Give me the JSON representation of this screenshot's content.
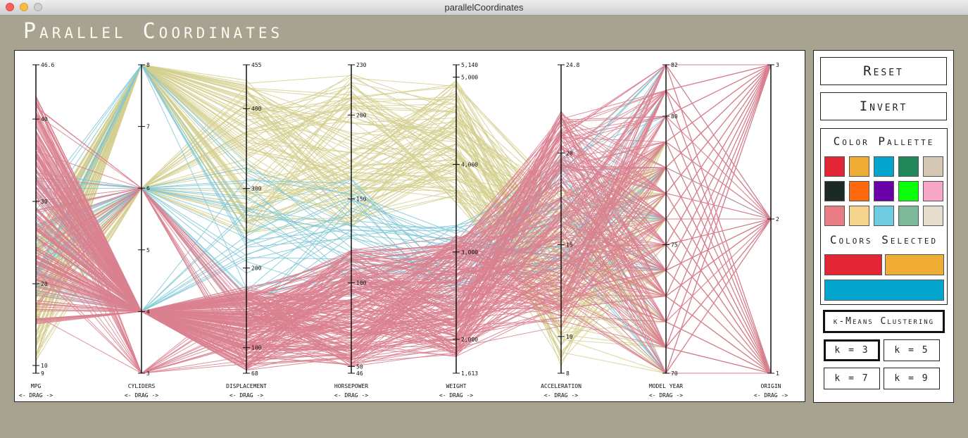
{
  "window": {
    "title": "parallelCoordinates"
  },
  "app": {
    "title": "Parallel Coordinates"
  },
  "axes": [
    {
      "name": "MPG",
      "drag": "<- DRAG ->",
      "ticks": [
        {
          "label": "46.6",
          "frac": 0
        },
        {
          "label": "40",
          "frac": 0.176
        },
        {
          "label": "30",
          "frac": 0.443
        },
        {
          "label": "20",
          "frac": 0.71
        },
        {
          "label": "10",
          "frac": 0.975
        },
        {
          "label": "9",
          "frac": 1
        }
      ]
    },
    {
      "name": "CYLIDERS",
      "drag": "<- DRAG ->",
      "ticks": [
        {
          "label": "8",
          "frac": 0
        },
        {
          "label": "7",
          "frac": 0.2
        },
        {
          "label": "6",
          "frac": 0.4
        },
        {
          "label": "5",
          "frac": 0.6
        },
        {
          "label": "4",
          "frac": 0.8
        },
        {
          "label": "3",
          "frac": 1
        }
      ]
    },
    {
      "name": "DISPLACEMENT",
      "drag": "<- DRAG ->",
      "ticks": [
        {
          "label": "455",
          "frac": 0
        },
        {
          "label": "400",
          "frac": 0.142
        },
        {
          "label": "300",
          "frac": 0.401
        },
        {
          "label": "200",
          "frac": 0.659
        },
        {
          "label": "100",
          "frac": 0.917
        },
        {
          "label": "68",
          "frac": 1
        }
      ]
    },
    {
      "name": "HORSEPOWER",
      "drag": "<- DRAG ->",
      "ticks": [
        {
          "label": "230",
          "frac": 0
        },
        {
          "label": "200",
          "frac": 0.163
        },
        {
          "label": "150",
          "frac": 0.435
        },
        {
          "label": "100",
          "frac": 0.707
        },
        {
          "label": "50",
          "frac": 0.978
        },
        {
          "label": "46",
          "frac": 1
        }
      ]
    },
    {
      "name": "WEIGHT",
      "drag": "<- DRAG ->",
      "ticks": [
        {
          "label": "5,140",
          "frac": 0
        },
        {
          "label": "5,000",
          "frac": 0.04
        },
        {
          "label": "4,000",
          "frac": 0.323
        },
        {
          "label": "3,000",
          "frac": 0.607
        },
        {
          "label": "2,000",
          "frac": 0.89
        },
        {
          "label": "1,613",
          "frac": 1
        }
      ]
    },
    {
      "name": "ACCELERATION",
      "drag": "<- DRAG ->",
      "ticks": [
        {
          "label": "24.8",
          "frac": 0
        },
        {
          "label": "20",
          "frac": 0.286
        },
        {
          "label": "15",
          "frac": 0.583
        },
        {
          "label": "10",
          "frac": 0.881
        },
        {
          "label": "8",
          "frac": 1
        }
      ]
    },
    {
      "name": "MODEL YEAR",
      "drag": "<- DRAG ->",
      "ticks": [
        {
          "label": "82",
          "frac": 0
        },
        {
          "label": "80",
          "frac": 0.1667
        },
        {
          "label": "75",
          "frac": 0.5833
        },
        {
          "label": "70",
          "frac": 1
        }
      ]
    },
    {
      "name": "ORIGIN",
      "drag": "<- DRAG ->",
      "ticks": [
        {
          "label": "3",
          "frac": 0
        },
        {
          "label": "2",
          "frac": 0.5
        },
        {
          "label": "1",
          "frac": 1
        }
      ]
    }
  ],
  "controls": {
    "reset_label": "Reset",
    "invert_label": "Invert",
    "palette_title": "Color Pallette",
    "palette": [
      "#e32636",
      "#f0ad35",
      "#04a5cc",
      "#22875a",
      "#d4c8b4",
      "#1b2a24",
      "#ff6a0e",
      "#6a00a8",
      "#0bff0b",
      "#f8a6c8",
      "#ea7c86",
      "#f5d48e",
      "#6fcbe0",
      "#7db89a",
      "#e4dccd"
    ],
    "selected_title": "Colors Selected",
    "selected": [
      "#e32636",
      "#f0ad35",
      "#04a5cc"
    ],
    "kmeans_label": "k-Means Clustering",
    "k_buttons": [
      {
        "label": "k = 3",
        "active": true
      },
      {
        "label": "k = 5",
        "active": false
      },
      {
        "label": "k = 7",
        "active": false
      },
      {
        "label": "k = 9",
        "active": false
      }
    ]
  },
  "clusters": [
    {
      "color": "#d9808f"
    },
    {
      "color": "#d3cf8e"
    },
    {
      "color": "#7fc7d6"
    }
  ]
}
